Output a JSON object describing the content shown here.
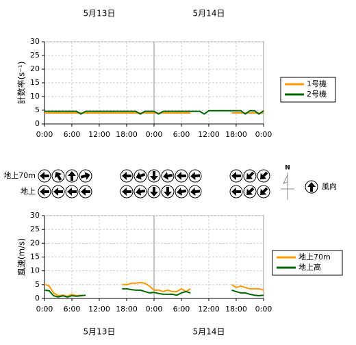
{
  "chart_data": [
    {
      "type": "line",
      "dates": [
        "5月13日",
        "5月14日"
      ],
      "ylabel": "計数率(s⁻¹)",
      "x": [
        0,
        1,
        2,
        3,
        4,
        5,
        6,
        7,
        8,
        9,
        10,
        11,
        12,
        13,
        14,
        15,
        16,
        17,
        18,
        19,
        20,
        21,
        22,
        23,
        24,
        25,
        26,
        27,
        28,
        29,
        30,
        31,
        32,
        33,
        34,
        35,
        36,
        37,
        38,
        39,
        40,
        41,
        42,
        43,
        44,
        45,
        46,
        47,
        48
      ],
      "xlim": [
        0,
        48
      ],
      "ylim": [
        0,
        30
      ],
      "yticks": [
        0,
        5,
        10,
        15,
        20,
        25,
        30
      ],
      "xticks": [
        {
          "value": 0,
          "label": "0:00"
        },
        {
          "value": 6,
          "label": "6:00"
        },
        {
          "value": 12,
          "label": "12:00"
        },
        {
          "value": 18,
          "label": "18:00"
        },
        {
          "value": 24,
          "label": "0:00"
        },
        {
          "value": 30,
          "label": "6:00"
        },
        {
          "value": 36,
          "label": "12:00"
        },
        {
          "value": 42,
          "label": "18:00"
        },
        {
          "value": 48,
          "label": "0:00"
        }
      ],
      "grid": true,
      "series": [
        {
          "name": "1号機",
          "color": "#ff9900",
          "values": [
            4,
            4,
            4,
            4,
            4,
            4,
            4,
            4,
            4,
            4,
            4,
            4,
            4,
            4,
            4,
            4,
            4,
            4,
            4,
            4,
            4,
            4,
            4,
            4,
            4,
            4,
            4,
            4,
            4,
            4,
            4,
            4,
            4,
            null,
            null,
            null,
            null,
            null,
            null,
            null,
            null,
            4,
            4,
            4,
            4,
            4,
            4,
            4,
            4
          ]
        },
        {
          "name": "2号機",
          "color": "#006600",
          "values": [
            4.6,
            4.6,
            4.6,
            4.6,
            4.6,
            4.6,
            4.6,
            4.6,
            3.6,
            4.6,
            4.6,
            4.6,
            4.6,
            4.6,
            4.6,
            4.6,
            4.6,
            4.6,
            4.6,
            4.6,
            4.6,
            3.6,
            4.6,
            4.6,
            4.6,
            3.6,
            4.6,
            4.6,
            4.6,
            4.6,
            4.6,
            4.6,
            4.6,
            4.6,
            4.6,
            3.6,
            4.8,
            4.8,
            4.8,
            4.8,
            4.8,
            4.8,
            4.8,
            4.8,
            3.6,
            4.8,
            4.8,
            3.6,
            4.8
          ]
        }
      ]
    },
    {
      "type": "arrows",
      "x": [
        0,
        3,
        6,
        9,
        18,
        21,
        24,
        27,
        30,
        33,
        42,
        45,
        48
      ],
      "north": "N",
      "legend": "風向",
      "rows": [
        {
          "name": "地上70m",
          "values": [
            270,
            330,
            0,
            75,
            270,
            250,
            180,
            260,
            270,
            265,
            270,
            225,
            225
          ]
        },
        {
          "name": "地上",
          "values": [
            270,
            270,
            270,
            270,
            270,
            260,
            180,
            180,
            260,
            265,
            270,
            225,
            225
          ]
        }
      ]
    },
    {
      "type": "line",
      "dates": [
        "5月13日",
        "5月14日"
      ],
      "ylabel": "風速(m/s)",
      "x": [
        0,
        1,
        2,
        3,
        4,
        5,
        6,
        7,
        8,
        9,
        10,
        11,
        12,
        13,
        14,
        15,
        16,
        17,
        18,
        19,
        20,
        21,
        22,
        23,
        24,
        25,
        26,
        27,
        28,
        29,
        30,
        31,
        32,
        33,
        34,
        35,
        36,
        37,
        38,
        39,
        40,
        41,
        42,
        43,
        44,
        45,
        46,
        47,
        48
      ],
      "xlim": [
        0,
        48
      ],
      "ylim": [
        0,
        30
      ],
      "yticks": [
        0,
        5,
        10,
        15,
        20,
        25,
        30
      ],
      "xticks": [
        {
          "value": 0,
          "label": "0:00"
        },
        {
          "value": 6,
          "label": "6:00"
        },
        {
          "value": 12,
          "label": "12:00"
        },
        {
          "value": 18,
          "label": "18:00"
        },
        {
          "value": 24,
          "label": "0:00"
        },
        {
          "value": 30,
          "label": "6:00"
        },
        {
          "value": 36,
          "label": "12:00"
        },
        {
          "value": 42,
          "label": "18:00"
        },
        {
          "value": 48,
          "label": "0:00"
        }
      ],
      "grid": true,
      "series": [
        {
          "name": "地上70m",
          "color": "#ff9900",
          "values": [
            5.2,
            4.5,
            2,
            1,
            1.2,
            0.8,
            1.5,
            1,
            1.2,
            null,
            null,
            null,
            null,
            null,
            null,
            null,
            null,
            5,
            5,
            5.5,
            5.5,
            5.8,
            5.5,
            4.5,
            3,
            3,
            2.5,
            3,
            2.5,
            2.5,
            3.5,
            2.5,
            3.5,
            null,
            null,
            null,
            null,
            null,
            null,
            null,
            null,
            5,
            4,
            4.5,
            4,
            3.5,
            3.5,
            3.5,
            3
          ]
        },
        {
          "name": "地上高",
          "color": "#006600",
          "values": [
            3,
            2.8,
            1,
            0.5,
            1,
            0.5,
            1,
            0.8,
            1,
            1.2,
            null,
            null,
            null,
            null,
            null,
            null,
            null,
            3.5,
            3.5,
            3.2,
            3,
            3,
            2.5,
            2,
            2.2,
            1.8,
            1.5,
            1.5,
            1.5,
            1.2,
            2,
            2.5,
            2,
            null,
            null,
            null,
            null,
            null,
            null,
            null,
            null,
            3,
            2.5,
            2,
            2,
            1.5,
            1.2,
            1,
            1.2
          ]
        }
      ]
    }
  ]
}
